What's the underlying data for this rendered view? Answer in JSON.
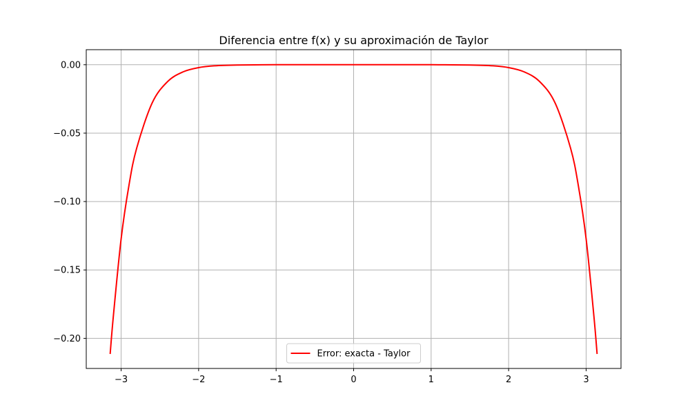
{
  "chart_data": {
    "type": "line",
    "title": "Diferencia entre f(x) y su aproximación de Taylor",
    "xlabel": "",
    "ylabel": "",
    "xlim": [
      -3.45,
      3.45
    ],
    "ylim": [
      -0.222,
      0.011
    ],
    "xticks": [
      {
        "value": -3,
        "label": "−3"
      },
      {
        "value": -2,
        "label": "−2"
      },
      {
        "value": -1,
        "label": "−1"
      },
      {
        "value": 0,
        "label": "0"
      },
      {
        "value": 1,
        "label": "1"
      },
      {
        "value": 2,
        "label": "2"
      },
      {
        "value": 3,
        "label": "3"
      }
    ],
    "yticks": [
      {
        "value": 0.0,
        "label": "0.00"
      },
      {
        "value": -0.05,
        "label": "−0.05"
      },
      {
        "value": -0.1,
        "label": "−0.10"
      },
      {
        "value": -0.15,
        "label": "−0.15"
      },
      {
        "value": -0.2,
        "label": "−0.20"
      }
    ],
    "grid": true,
    "legend_position": "lower center",
    "series": [
      {
        "name": "Error: exacta - Taylor",
        "color": "#ff0000",
        "x": [
          -3.1416,
          -3.1,
          -3.0,
          -2.9,
          -2.8,
          -2.6,
          -2.4,
          -2.2,
          -2.0,
          -1.8,
          -1.5,
          -1.0,
          -0.5,
          0.0,
          0.5,
          1.0,
          1.5,
          1.8,
          2.0,
          2.2,
          2.4,
          2.6,
          2.8,
          2.9,
          3.0,
          3.1,
          3.1416
        ],
        "y": [
          -0.2114,
          -0.1836,
          -0.1273,
          -0.0885,
          -0.0611,
          -0.028,
          -0.0123,
          -0.0052,
          -0.0021,
          -0.0008,
          -0.0002,
          0.0,
          0.0,
          0.0,
          0.0,
          0.0,
          -0.0002,
          -0.0008,
          -0.0021,
          -0.0052,
          -0.0123,
          -0.028,
          -0.0611,
          -0.0885,
          -0.1273,
          -0.1836,
          -0.2114
        ]
      }
    ]
  }
}
